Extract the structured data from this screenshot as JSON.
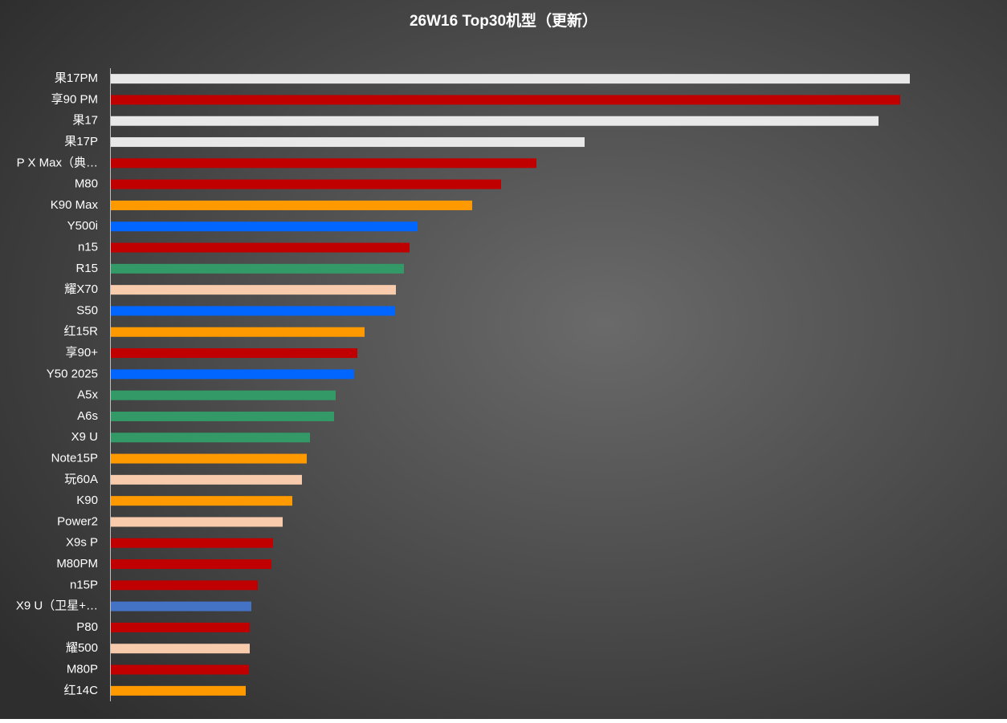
{
  "chart_data": {
    "type": "bar",
    "orientation": "horizontal",
    "title": "26W16 Top30机型（更新）",
    "categories": [
      "果17PM",
      "享90 PM",
      "果17",
      "果17P",
      "P X Max（典…",
      "M80",
      "K90 Max",
      "Y500i",
      "n15",
      "R15",
      "耀X70",
      "S50",
      "红15R",
      "享90+",
      "Y50 2025",
      "A5x",
      "A6s",
      "X9 U",
      "Note15P",
      "玩60A",
      "K90",
      "Power2",
      "X9s P",
      "M80PM",
      "n15P",
      "X9 U（卫星+…",
      "P80",
      "耀500",
      "M80P",
      "红14C"
    ],
    "values": [
      995,
      983,
      956,
      590,
      530,
      486,
      450,
      382,
      372,
      365,
      355,
      354,
      316,
      307,
      303,
      280,
      278,
      248,
      244,
      238,
      226,
      214,
      202,
      200,
      183,
      175,
      173,
      173,
      172,
      168
    ],
    "colors": [
      "#e8e8e8",
      "#c00000",
      "#e8e8e8",
      "#e8e8e8",
      "#c00000",
      "#c00000",
      "#ff9900",
      "#0066ff",
      "#c00000",
      "#339966",
      "#f8cbad",
      "#0066ff",
      "#ff9900",
      "#c00000",
      "#0066ff",
      "#339966",
      "#339966",
      "#339966",
      "#ff9900",
      "#f8cbad",
      "#ff9900",
      "#f8cbad",
      "#c00000",
      "#c00000",
      "#c00000",
      "#4472c4",
      "#c00000",
      "#f8cbad",
      "#c00000",
      "#ff9900"
    ],
    "xlim": [
      0,
      1000
    ]
  }
}
